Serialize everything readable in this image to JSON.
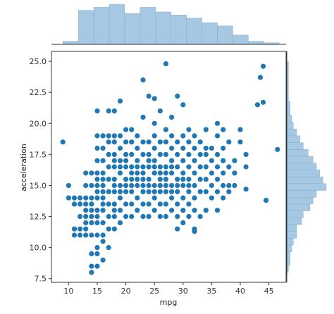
{
  "chart_data": {
    "type": "scatter",
    "title": "",
    "xlabel": "mpg",
    "ylabel": "acceleration",
    "xlim": [
      7,
      48
    ],
    "ylim": [
      7.2,
      25.8
    ],
    "xticks": [
      10,
      15,
      20,
      25,
      30,
      35,
      40,
      45
    ],
    "yticks": [
      7.5,
      10.0,
      12.5,
      15.0,
      17.5,
      20.0,
      22.5,
      25.0
    ],
    "ytick_labels": [
      "7.5",
      "10.0",
      "12.5",
      "15.0",
      "17.5",
      "20.0",
      "22.5",
      "25.0"
    ],
    "grid": false,
    "colors": {
      "points": "#1f77b4",
      "hist": "#a6c8e2",
      "hist_edge": "#7ba7cc",
      "axis": "#333333"
    },
    "points": [
      [
        9,
        18.5
      ],
      [
        10,
        15.0
      ],
      [
        10,
        14.0
      ],
      [
        11,
        13.5
      ],
      [
        11,
        14.0
      ],
      [
        11,
        11.5
      ],
      [
        11,
        11.0
      ],
      [
        12,
        11.0
      ],
      [
        12,
        13.5
      ],
      [
        12,
        14.0
      ],
      [
        12,
        12.5
      ],
      [
        12,
        11.5
      ],
      [
        13,
        11.0
      ],
      [
        13,
        12.0
      ],
      [
        13,
        13.0
      ],
      [
        13,
        14.0
      ],
      [
        13,
        15.0
      ],
      [
        13,
        16.0
      ],
      [
        13,
        12.5
      ],
      [
        13,
        13.5
      ],
      [
        13,
        11.5
      ],
      [
        14,
        11.0
      ],
      [
        14,
        12.0
      ],
      [
        14,
        13.0
      ],
      [
        14,
        14.0
      ],
      [
        14,
        15.0
      ],
      [
        14,
        16.0
      ],
      [
        14,
        9.5
      ],
      [
        14,
        12.5
      ],
      [
        14,
        13.5
      ],
      [
        14,
        8.5
      ],
      [
        14,
        8.0
      ],
      [
        15,
        10.0
      ],
      [
        15,
        11.0
      ],
      [
        15,
        12.0
      ],
      [
        15,
        13.0
      ],
      [
        15,
        14.0
      ],
      [
        15,
        15.0
      ],
      [
        15,
        16.0
      ],
      [
        15,
        17.0
      ],
      [
        15,
        18.0
      ],
      [
        15,
        19.0
      ],
      [
        15,
        12.5
      ],
      [
        15,
        14.5
      ],
      [
        15,
        15.5
      ],
      [
        15,
        21.0
      ],
      [
        15,
        8.5
      ],
      [
        15,
        9.5
      ],
      [
        16,
        11.0
      ],
      [
        16,
        12.0
      ],
      [
        16,
        13.0
      ],
      [
        16,
        14.0
      ],
      [
        16,
        15.0
      ],
      [
        16,
        16.0
      ],
      [
        16,
        17.0
      ],
      [
        16,
        18.0
      ],
      [
        16,
        19.0
      ],
      [
        16,
        13.5
      ],
      [
        16,
        14.5
      ],
      [
        16,
        15.5
      ],
      [
        16,
        9.0
      ],
      [
        16,
        10.5
      ],
      [
        17,
        11.5
      ],
      [
        17,
        12.5
      ],
      [
        17,
        13.5
      ],
      [
        17,
        14.5
      ],
      [
        17,
        15.5
      ],
      [
        17,
        16.5
      ],
      [
        17,
        17.5
      ],
      [
        17,
        18.5
      ],
      [
        17,
        19.0
      ],
      [
        17,
        21.0
      ],
      [
        17,
        10.0
      ],
      [
        18,
        11.5
      ],
      [
        18,
        12.5
      ],
      [
        18,
        13.5
      ],
      [
        18,
        14.5
      ],
      [
        18,
        15.5
      ],
      [
        18,
        16.5
      ],
      [
        18,
        17.5
      ],
      [
        18,
        18.5
      ],
      [
        18,
        19.0
      ],
      [
        18,
        21.0
      ],
      [
        18,
        13.0
      ],
      [
        18,
        15.0
      ],
      [
        18,
        17.0
      ],
      [
        19,
        12.0
      ],
      [
        19,
        13.0
      ],
      [
        19,
        14.0
      ],
      [
        19,
        15.0
      ],
      [
        19,
        16.0
      ],
      [
        19,
        17.0
      ],
      [
        19,
        18.0
      ],
      [
        19,
        19.0
      ],
      [
        19,
        21.8
      ],
      [
        19,
        14.5
      ],
      [
        19,
        16.5
      ],
      [
        20,
        12.5
      ],
      [
        20,
        13.5
      ],
      [
        20,
        14.5
      ],
      [
        20,
        15.5
      ],
      [
        20,
        16.5
      ],
      [
        20,
        17.5
      ],
      [
        20,
        18.5
      ],
      [
        20,
        19.5
      ],
      [
        20,
        15.0
      ],
      [
        20,
        17.0
      ],
      [
        21,
        12.5
      ],
      [
        21,
        13.5
      ],
      [
        21,
        14.5
      ],
      [
        21,
        15.5
      ],
      [
        21,
        16.5
      ],
      [
        21,
        17.5
      ],
      [
        21,
        18.5
      ],
      [
        21,
        19.5
      ],
      [
        21,
        15.0
      ],
      [
        21,
        16.0
      ],
      [
        22,
        13.0
      ],
      [
        22,
        14.0
      ],
      [
        22,
        15.0
      ],
      [
        22,
        16.0
      ],
      [
        22,
        17.0
      ],
      [
        22,
        18.0
      ],
      [
        22,
        19.0
      ],
      [
        22,
        15.5
      ],
      [
        22,
        16.5
      ],
      [
        23,
        12.5
      ],
      [
        23,
        13.5
      ],
      [
        23,
        14.5
      ],
      [
        23,
        15.5
      ],
      [
        23,
        16.5
      ],
      [
        23,
        17.5
      ],
      [
        23,
        18.5
      ],
      [
        23,
        20.5
      ],
      [
        23,
        23.5
      ],
      [
        23,
        15.0
      ],
      [
        23,
        16.0
      ],
      [
        24,
        12.5
      ],
      [
        24,
        13.5
      ],
      [
        24,
        14.5
      ],
      [
        24,
        15.5
      ],
      [
        24,
        16.5
      ],
      [
        24,
        17.5
      ],
      [
        24,
        18.5
      ],
      [
        24,
        22.2
      ],
      [
        24,
        15.0
      ],
      [
        24,
        17.0
      ],
      [
        25,
        13.0
      ],
      [
        25,
        14.0
      ],
      [
        25,
        15.0
      ],
      [
        25,
        16.0
      ],
      [
        25,
        17.0
      ],
      [
        25,
        18.0
      ],
      [
        25,
        19.0
      ],
      [
        25,
        20.0
      ],
      [
        25,
        22.0
      ],
      [
        25,
        14.5
      ],
      [
        25,
        16.5
      ],
      [
        26,
        12.5
      ],
      [
        26,
        13.5
      ],
      [
        26,
        14.5
      ],
      [
        26,
        15.5
      ],
      [
        26,
        16.5
      ],
      [
        26,
        17.5
      ],
      [
        26,
        18.5
      ],
      [
        26,
        21.0
      ],
      [
        26,
        15.0
      ],
      [
        26,
        16.0
      ],
      [
        27,
        12.5
      ],
      [
        27,
        13.5
      ],
      [
        27,
        14.5
      ],
      [
        27,
        15.5
      ],
      [
        27,
        16.5
      ],
      [
        27,
        17.5
      ],
      [
        27,
        18.5
      ],
      [
        27,
        19.5
      ],
      [
        27,
        24.8
      ],
      [
        27,
        15.0
      ],
      [
        27,
        16.0
      ],
      [
        28,
        13.0
      ],
      [
        28,
        14.0
      ],
      [
        28,
        15.0
      ],
      [
        28,
        16.0
      ],
      [
        28,
        17.0
      ],
      [
        28,
        18.0
      ],
      [
        28,
        19.0
      ],
      [
        28,
        20.5
      ],
      [
        28,
        14.5
      ],
      [
        28,
        16.5
      ],
      [
        29,
        11.5
      ],
      [
        29,
        12.5
      ],
      [
        29,
        13.5
      ],
      [
        29,
        14.5
      ],
      [
        29,
        15.5
      ],
      [
        29,
        16.5
      ],
      [
        29,
        17.5
      ],
      [
        29,
        18.5
      ],
      [
        29,
        22.2
      ],
      [
        29,
        15.0
      ],
      [
        30,
        12.0
      ],
      [
        30,
        13.0
      ],
      [
        30,
        14.0
      ],
      [
        30,
        15.0
      ],
      [
        30,
        16.0
      ],
      [
        30,
        17.0
      ],
      [
        30,
        18.0
      ],
      [
        30,
        19.0
      ],
      [
        30,
        21.5
      ],
      [
        30,
        15.5
      ],
      [
        31,
        12.5
      ],
      [
        31,
        13.5
      ],
      [
        31,
        14.5
      ],
      [
        31,
        15.5
      ],
      [
        31,
        16.5
      ],
      [
        31,
        17.5
      ],
      [
        31,
        18.5
      ],
      [
        31,
        19.5
      ],
      [
        31,
        15.0
      ],
      [
        32,
        11.5
      ],
      [
        32,
        13.0
      ],
      [
        32,
        14.0
      ],
      [
        32,
        15.0
      ],
      [
        32,
        16.0
      ],
      [
        32,
        17.0
      ],
      [
        32,
        18.0
      ],
      [
        32,
        19.0
      ],
      [
        32,
        11.3
      ],
      [
        33,
        12.5
      ],
      [
        33,
        14.5
      ],
      [
        33,
        15.5
      ],
      [
        33,
        16.5
      ],
      [
        33,
        17.5
      ],
      [
        33,
        18.5
      ],
      [
        34,
        13.0
      ],
      [
        34,
        14.5
      ],
      [
        34,
        15.5
      ],
      [
        34,
        16.5
      ],
      [
        34,
        17.5
      ],
      [
        34,
        18.0
      ],
      [
        34,
        19.5
      ],
      [
        35,
        14.0
      ],
      [
        35,
        15.0
      ],
      [
        35,
        16.0
      ],
      [
        35,
        17.0
      ],
      [
        35,
        18.0
      ],
      [
        36,
        13.0
      ],
      [
        36,
        14.5
      ],
      [
        36,
        15.5
      ],
      [
        36,
        16.5
      ],
      [
        36,
        17.5
      ],
      [
        36,
        19.0
      ],
      [
        36,
        20.0
      ],
      [
        37,
        14.0
      ],
      [
        37,
        15.0
      ],
      [
        37,
        16.0
      ],
      [
        37,
        17.0
      ],
      [
        37,
        18.0
      ],
      [
        37,
        19.5
      ],
      [
        38,
        14.5
      ],
      [
        38,
        15.0
      ],
      [
        38,
        16.5
      ],
      [
        38,
        18.5
      ],
      [
        39,
        15.0
      ],
      [
        39,
        16.0
      ],
      [
        39,
        17.0
      ],
      [
        40,
        18.5
      ],
      [
        40,
        19.5
      ],
      [
        41,
        14.7
      ],
      [
        41,
        16.5
      ],
      [
        41,
        17.5
      ],
      [
        43,
        21.5
      ],
      [
        43.5,
        23.7
      ],
      [
        44,
        24.6
      ],
      [
        44,
        21.7
      ],
      [
        44.5,
        13.8
      ],
      [
        46.5,
        17.9
      ]
    ],
    "marginal_x": {
      "bin_edges": [
        9,
        11.7,
        14.4,
        17.1,
        19.8,
        22.5,
        25.2,
        27.9,
        30.6,
        33.3,
        36,
        38.7,
        41.4,
        44.1,
        46.8
      ],
      "counts": [
        2,
        22,
        24,
        26,
        20,
        24,
        21,
        19,
        17,
        14,
        12,
        6,
        2,
        1
      ]
    },
    "marginal_y": {
      "bin_edges": [
        8,
        8.55,
        9.1,
        9.65,
        10.2,
        10.75,
        11.3,
        11.85,
        12.4,
        12.95,
        13.5,
        14.05,
        14.6,
        15.15,
        15.7,
        16.25,
        16.8,
        17.35,
        17.9,
        18.45,
        19,
        19.55,
        20.1,
        20.65,
        21.2,
        21.75,
        22.3,
        22.85,
        23.4,
        23.95,
        24.5,
        25
      ],
      "counts": [
        1,
        2,
        2,
        3,
        4,
        6,
        6,
        9,
        10,
        14,
        16,
        18,
        24,
        22,
        20,
        18,
        16,
        13,
        10,
        8,
        6,
        4,
        3,
        2,
        2,
        1,
        1,
        1,
        1,
        1,
        1
      ]
    }
  }
}
